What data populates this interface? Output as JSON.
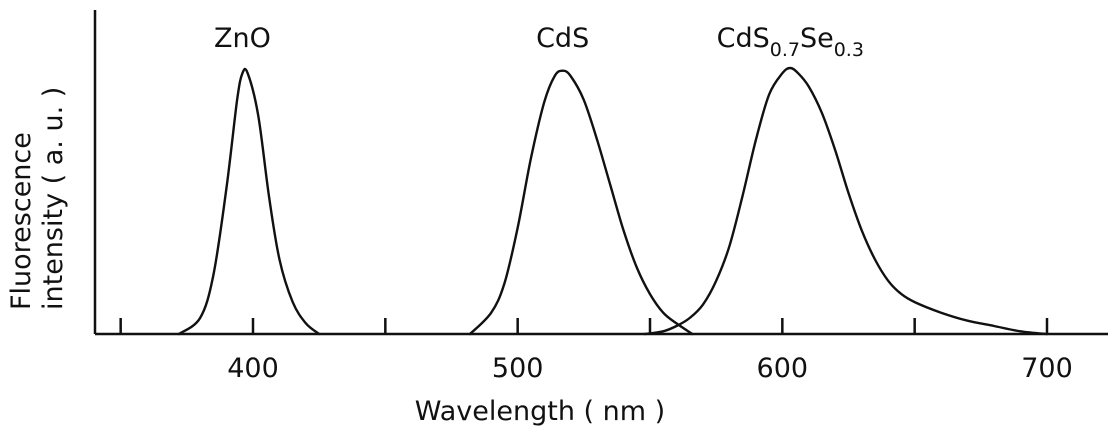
{
  "chart_data": {
    "type": "line",
    "xlabel": "Wavelength  ( nm )",
    "ylabel_line1": "Fluorescence",
    "ylabel_line2": "intensity  ( a. u. )",
    "xlim": [
      320,
      750
    ],
    "ylim": [
      0,
      1.0
    ],
    "x_major_ticks": [
      400,
      500,
      600,
      700
    ],
    "x_minor_ticks": [
      350,
      450,
      550,
      650
    ],
    "x_tick_labels": [
      "400",
      "500",
      "600",
      "700"
    ],
    "series": [
      {
        "name": "ZnO",
        "label_main": "ZnO",
        "label_sub1": "",
        "label_mid": "",
        "label_sub2": "",
        "x": [
          372,
          380,
          385,
          390,
          394,
          396,
          398,
          402,
          406,
          410,
          415,
          420,
          425
        ],
        "y": [
          0.0,
          0.06,
          0.22,
          0.55,
          0.88,
          0.98,
          0.98,
          0.82,
          0.52,
          0.28,
          0.12,
          0.04,
          0.0
        ]
      },
      {
        "name": "CdS",
        "label_main": "CdS",
        "label_sub1": "",
        "label_mid": "",
        "label_sub2": "",
        "x": [
          482,
          490,
          495,
          500,
          505,
          510,
          514,
          517,
          520,
          525,
          530,
          535,
          540,
          545,
          550,
          555,
          560,
          566
        ],
        "y": [
          0.0,
          0.08,
          0.19,
          0.4,
          0.66,
          0.87,
          0.97,
          0.99,
          0.97,
          0.88,
          0.73,
          0.56,
          0.39,
          0.25,
          0.15,
          0.08,
          0.04,
          0.0
        ]
      },
      {
        "name": "CdS0.7Se0.3",
        "label_main": "CdS",
        "label_sub1": "0.7",
        "label_mid": "Se",
        "label_sub2": "0.3",
        "x": [
          548,
          555,
          560,
          565,
          570,
          575,
          580,
          585,
          590,
          595,
          600,
          603,
          606,
          610,
          615,
          620,
          625,
          630,
          635,
          640,
          645,
          650,
          660,
          670,
          680,
          690,
          700
        ],
        "y": [
          0.0,
          0.01,
          0.03,
          0.06,
          0.11,
          0.2,
          0.33,
          0.52,
          0.73,
          0.9,
          0.98,
          1.0,
          0.98,
          0.93,
          0.83,
          0.69,
          0.53,
          0.39,
          0.28,
          0.2,
          0.15,
          0.12,
          0.08,
          0.05,
          0.03,
          0.01,
          0.0
        ]
      }
    ]
  }
}
